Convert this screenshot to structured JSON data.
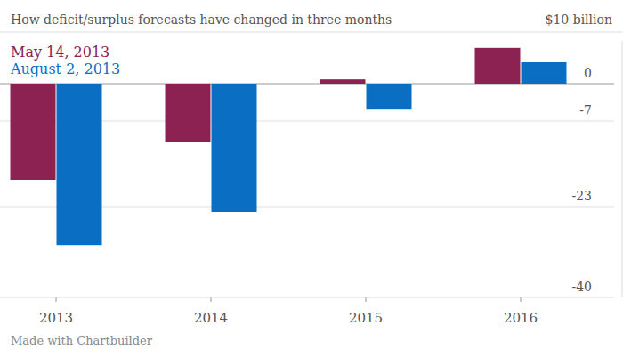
{
  "chart_data": {
    "type": "bar",
    "title": "How deficit/surplus forecasts have changed in three months",
    "ylabel": "$10 billion",
    "credit": "Made with Chartbuilder",
    "categories": [
      "2013",
      "2014",
      "2015",
      "2016"
    ],
    "series": [
      {
        "name": "May 14, 2013",
        "color": "#8b2252",
        "values": [
          -18,
          -11,
          0.8,
          6.7
        ]
      },
      {
        "name": "August 2, 2013",
        "color": "#0a6fc3",
        "values": [
          -30.2,
          -24,
          -4.7,
          4
        ]
      }
    ],
    "ylim": [
      -40,
      8
    ],
    "yticks": [
      -40,
      -23,
      -7,
      0
    ],
    "grid": true,
    "legend": "top-left"
  }
}
